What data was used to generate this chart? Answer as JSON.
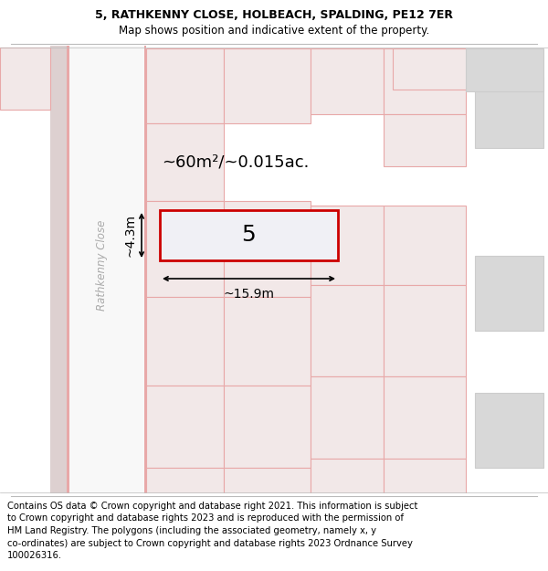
{
  "title": "5, RATHKENNY CLOSE, HOLBEACH, SPALDING, PE12 7ER",
  "subtitle": "Map shows position and indicative extent of the property.",
  "footer_lines": [
    "Contains OS data © Crown copyright and database right 2021. This information is subject",
    "to Crown copyright and database rights 2023 and is reproduced with the permission of",
    "HM Land Registry. The polygons (including the associated geometry, namely x, y",
    "co-ordinates) are subject to Crown copyright and database rights 2023 Ordnance Survey",
    "100026316."
  ],
  "bg_color": "#ffffff",
  "road_color": "#e8a8a8",
  "plot_fill": "#f2e8e8",
  "highlight_fill": "#f0f0f5",
  "highlight_border": "#cc0000",
  "road_label": "Rathkenny Close",
  "area_label": "~60m²/~0.015ac.",
  "plot_number": "5",
  "dim_width": "~15.9m",
  "dim_height": "~4.3m",
  "title_fontsize": 9,
  "subtitle_fontsize": 8.5,
  "footer_fontsize": 7.2
}
